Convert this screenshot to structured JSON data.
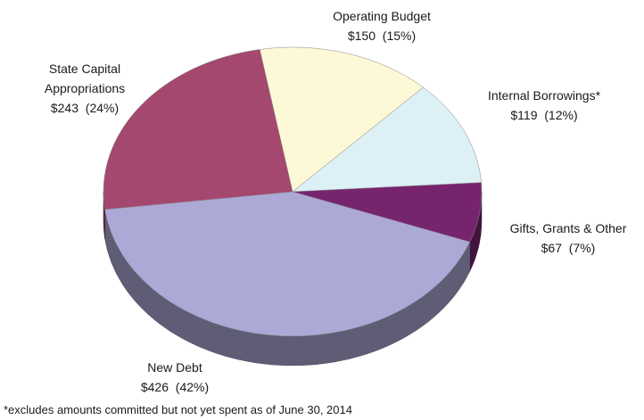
{
  "chart_data": {
    "type": "pie",
    "categories": [
      "Operating Budget",
      "Internal Borrowings*",
      "Gifts, Grants & Other",
      "New Debt",
      "State Capital Appropriations"
    ],
    "values": [
      150,
      119,
      67,
      426,
      243
    ],
    "value_labels": [
      "$150  (15%)",
      "$119  (12%)",
      "$67  (7%)",
      "$426  (42%)",
      "$243  (24%)"
    ],
    "colors": [
      "#fdf9d6",
      "#dcf0f5",
      "#77246f",
      "#aca9d7",
      "#a4486f"
    ],
    "footnote": "*excludes amounts committed but not yet spent as of June 30, 2014"
  }
}
